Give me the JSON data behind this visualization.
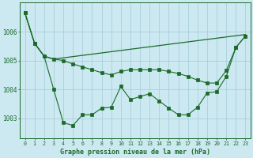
{
  "title": "Graphe pression niveau de la mer (hPa)",
  "bg_color": "#cce8f0",
  "grid_color": "#aacfdc",
  "line_color": "#1a6b2a",
  "xlim": [
    -0.5,
    23.5
  ],
  "ylim": [
    1002.3,
    1007.0
  ],
  "yticks": [
    1003,
    1004,
    1005,
    1006
  ],
  "xticks": [
    0,
    1,
    2,
    3,
    4,
    5,
    6,
    7,
    8,
    9,
    10,
    11,
    12,
    13,
    14,
    15,
    16,
    17,
    18,
    19,
    20,
    21,
    22,
    23
  ],
  "series1_x": [
    0,
    1,
    2,
    3,
    23
  ],
  "series1_y": [
    1006.65,
    1005.6,
    1005.15,
    1005.05,
    1005.9
  ],
  "series2_x": [
    0,
    1,
    2,
    3,
    4,
    5,
    6,
    7,
    8,
    9,
    10,
    11,
    12,
    13,
    14,
    15,
    16,
    17,
    18,
    19,
    20,
    21,
    22,
    23
  ],
  "series2_y": [
    1006.65,
    1005.6,
    1005.15,
    1005.05,
    1005.0,
    1004.88,
    1004.78,
    1004.68,
    1004.58,
    1004.5,
    1004.62,
    1004.68,
    1004.68,
    1004.68,
    1004.68,
    1004.62,
    1004.55,
    1004.45,
    1004.32,
    1004.22,
    1004.22,
    1004.65,
    1005.45,
    1005.85
  ],
  "series3_x": [
    0,
    1,
    2,
    3,
    4,
    5,
    6,
    7,
    8,
    9,
    10,
    11,
    12,
    13,
    14,
    15,
    16,
    17,
    18,
    19,
    20,
    21,
    22,
    23
  ],
  "series3_y": [
    1006.65,
    1005.6,
    1005.15,
    1004.0,
    1002.85,
    1002.75,
    1003.12,
    1003.12,
    1003.35,
    1003.38,
    1004.1,
    1003.65,
    1003.75,
    1003.85,
    1003.6,
    1003.35,
    1003.12,
    1003.12,
    1003.38,
    1003.88,
    1003.92,
    1004.45,
    1005.45,
    1005.85
  ]
}
